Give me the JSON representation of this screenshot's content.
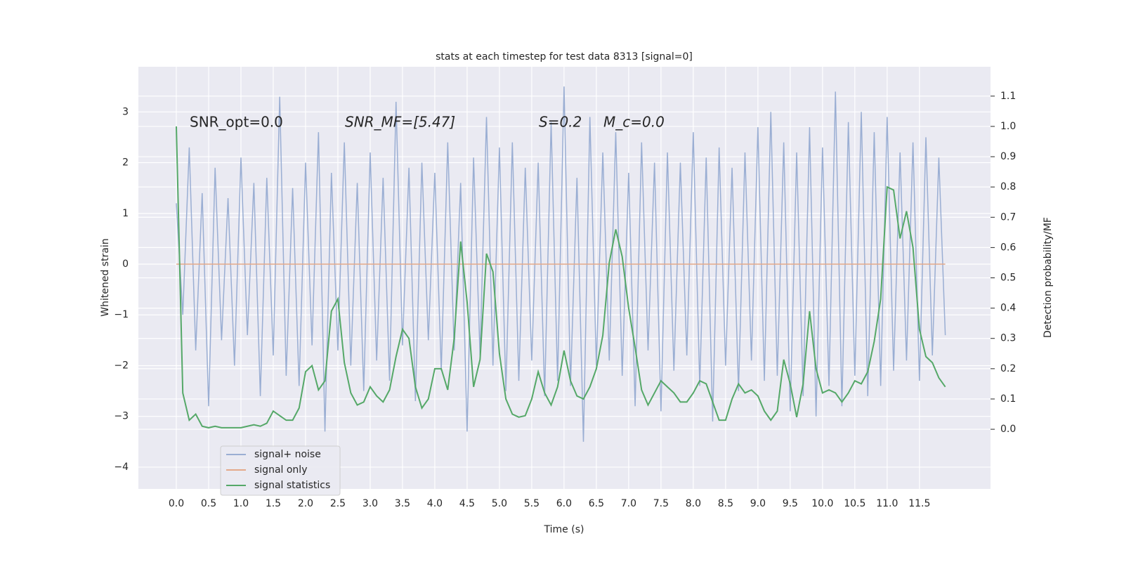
{
  "chart_data": {
    "type": "line",
    "title": "stats at each timestep for test data 8313 [signal=0]",
    "xlabel": "Time (s)",
    "ylabel": "Whitened strain",
    "y2label": "Detection probability/MF",
    "annotations": [
      "SNR_opt=0.0",
      "SNR_MF=[5.47]",
      "S=0.2",
      "M_c=0.0"
    ],
    "grid": true,
    "legend": "lower left",
    "xlim": [
      -0.587,
      12.6
    ],
    "ylim": [
      -4.43,
      3.89
    ],
    "y2lim": [
      -0.197,
      1.197
    ],
    "xticks": [
      {
        "value": 0,
        "label": "0.0"
      },
      0.5,
      {
        "value": 1,
        "label": "1.0"
      },
      1.5,
      {
        "value": 2,
        "label": "2.0"
      },
      2.5,
      {
        "value": 3,
        "label": "3.0"
      },
      3.5,
      {
        "value": 4,
        "label": "4.0"
      },
      4.5,
      {
        "value": 5,
        "label": "5.0"
      },
      5.5,
      {
        "value": 6,
        "label": "6.0"
      },
      6.5,
      {
        "value": 7,
        "label": "7.0"
      },
      7.5,
      {
        "value": 8,
        "label": "8.0"
      },
      8.5,
      {
        "value": 9,
        "label": "9.0"
      },
      9.5,
      {
        "value": 10,
        "label": "10.0"
      },
      10.5,
      {
        "value": 11,
        "label": "11.0"
      },
      11.5
    ],
    "yticks": [
      {
        "value": -4,
        "label": "−4"
      },
      {
        "value": -3,
        "label": "−3"
      },
      {
        "value": -2,
        "label": "−2"
      },
      {
        "value": -1,
        "label": "−1"
      },
      0,
      1,
      2,
      3
    ],
    "y2ticks": [
      {
        "value": 0,
        "label": "0.0"
      },
      0.1,
      0.2,
      0.3,
      0.4,
      0.5,
      0.6,
      0.7,
      0.8,
      0.9,
      {
        "value": 1,
        "label": "1.0"
      },
      1.1
    ],
    "x": [
      0.0,
      0.1,
      0.2,
      0.3,
      0.4,
      0.5,
      0.6,
      0.7,
      0.8,
      0.9,
      1.0,
      1.1,
      1.2,
      1.3,
      1.4,
      1.5,
      1.6,
      1.7,
      1.8,
      1.9,
      2.0,
      2.1,
      2.2,
      2.3,
      2.4,
      2.5,
      2.6,
      2.7,
      2.8,
      2.9,
      3.0,
      3.1,
      3.2,
      3.3,
      3.4,
      3.5,
      3.6,
      3.7,
      3.8,
      3.9,
      4.0,
      4.1,
      4.2,
      4.3,
      4.4,
      4.5,
      4.6,
      4.7,
      4.8,
      4.9,
      5.0,
      5.1,
      5.2,
      5.3,
      5.4,
      5.5,
      5.6,
      5.7,
      5.8,
      5.9,
      6.0,
      6.1,
      6.2,
      6.3,
      6.4,
      6.5,
      6.6,
      6.7,
      6.8,
      6.9,
      7.0,
      7.1,
      7.2,
      7.3,
      7.4,
      7.5,
      7.6,
      7.7,
      7.8,
      7.9,
      8.0,
      8.1,
      8.2,
      8.3,
      8.4,
      8.5,
      8.6,
      8.7,
      8.8,
      8.9,
      9.0,
      9.1,
      9.2,
      9.3,
      9.4,
      9.5,
      9.6,
      9.7,
      9.8,
      9.9,
      10.0,
      10.1,
      10.2,
      10.3,
      10.4,
      10.5,
      10.6,
      10.7,
      10.8,
      10.9,
      11.0,
      11.1,
      11.2,
      11.3,
      11.4,
      11.5,
      11.6,
      11.7,
      11.8,
      11.9
    ],
    "series": [
      {
        "name": "signal+ noise",
        "color": "#9aaed3",
        "values": [
          1.2,
          -1.0,
          2.3,
          -1.7,
          1.4,
          -2.8,
          1.9,
          -1.5,
          1.3,
          -2.0,
          2.1,
          -1.4,
          1.6,
          -2.6,
          1.7,
          -1.8,
          3.3,
          -2.2,
          1.5,
          -2.4,
          2.0,
          -1.6,
          2.6,
          -3.3,
          1.8,
          -1.7,
          2.4,
          -2.0,
          1.6,
          -2.5,
          2.2,
          -1.9,
          1.7,
          -2.3,
          3.2,
          -1.6,
          1.9,
          -2.7,
          2.0,
          -1.5,
          1.8,
          -2.1,
          2.4,
          -1.7,
          1.6,
          -3.3,
          2.1,
          -1.8,
          2.9,
          -2.0,
          2.3,
          -2.5,
          2.4,
          -2.3,
          1.9,
          -1.9,
          2.0,
          -2.6,
          2.8,
          -2.3,
          3.5,
          -2.4,
          1.7,
          -3.5,
          2.9,
          -2.0,
          2.2,
          -1.9,
          2.6,
          -2.2,
          1.8,
          -2.8,
          2.4,
          -1.7,
          2.0,
          -2.9,
          2.2,
          -2.1,
          2.0,
          -1.8,
          2.6,
          -2.4,
          2.1,
          -3.1,
          2.3,
          -2.0,
          1.9,
          -2.5,
          2.2,
          -1.9,
          2.7,
          -2.3,
          3.0,
          -2.2,
          2.4,
          -2.9,
          2.2,
          -2.6,
          2.7,
          -3.0,
          2.3,
          -2.4,
          3.4,
          -2.8,
          2.8,
          -2.2,
          3.0,
          -2.6,
          2.6,
          -2.4,
          2.9,
          -2.1,
          2.2,
          -1.9,
          2.4,
          -2.3,
          2.5,
          -1.8,
          2.1,
          -1.4
        ]
      },
      {
        "name": "signal only",
        "color": "#e4a98a",
        "values": [
          0,
          0,
          0,
          0,
          0,
          0,
          0,
          0,
          0,
          0,
          0,
          0,
          0,
          0,
          0,
          0,
          0,
          0,
          0,
          0,
          0,
          0,
          0,
          0,
          0,
          0,
          0,
          0,
          0,
          0,
          0,
          0,
          0,
          0,
          0,
          0,
          0,
          0,
          0,
          0,
          0,
          0,
          0,
          0,
          0,
          0,
          0,
          0,
          0,
          0,
          0,
          0,
          0,
          0,
          0,
          0,
          0,
          0,
          0,
          0,
          0,
          0,
          0,
          0,
          0,
          0,
          0,
          0,
          0,
          0,
          0,
          0,
          0,
          0,
          0,
          0,
          0,
          0,
          0,
          0,
          0,
          0,
          0,
          0,
          0,
          0,
          0,
          0,
          0,
          0,
          0,
          0,
          0,
          0,
          0,
          0,
          0,
          0,
          0,
          0,
          0,
          0,
          0,
          0,
          0,
          0,
          0,
          0,
          0,
          0,
          0,
          0,
          0,
          0,
          0,
          0,
          0,
          0,
          0,
          0
        ]
      },
      {
        "name": "signal statistics",
        "color": "#55a868",
        "axis": "y2",
        "values": [
          1.0,
          0.12,
          0.03,
          0.05,
          0.01,
          0.005,
          0.01,
          0.005,
          0.005,
          0.005,
          0.005,
          0.01,
          0.015,
          0.01,
          0.02,
          0.06,
          0.045,
          0.03,
          0.03,
          0.07,
          0.19,
          0.21,
          0.13,
          0.16,
          0.39,
          0.43,
          0.22,
          0.12,
          0.08,
          0.09,
          0.14,
          0.11,
          0.09,
          0.13,
          0.24,
          0.33,
          0.3,
          0.14,
          0.07,
          0.1,
          0.2,
          0.2,
          0.13,
          0.3,
          0.62,
          0.42,
          0.14,
          0.23,
          0.58,
          0.52,
          0.25,
          0.1,
          0.05,
          0.04,
          0.045,
          0.1,
          0.19,
          0.12,
          0.08,
          0.14,
          0.26,
          0.16,
          0.11,
          0.1,
          0.14,
          0.2,
          0.31,
          0.55,
          0.66,
          0.57,
          0.4,
          0.27,
          0.13,
          0.08,
          0.12,
          0.16,
          0.14,
          0.12,
          0.09,
          0.09,
          0.12,
          0.16,
          0.15,
          0.09,
          0.03,
          0.03,
          0.1,
          0.15,
          0.12,
          0.13,
          0.11,
          0.06,
          0.03,
          0.06,
          0.23,
          0.15,
          0.04,
          0.15,
          0.39,
          0.2,
          0.12,
          0.13,
          0.12,
          0.09,
          0.12,
          0.16,
          0.15,
          0.19,
          0.29,
          0.43,
          0.8,
          0.79,
          0.63,
          0.72,
          0.6,
          0.33,
          0.24,
          0.22,
          0.17,
          0.14
        ]
      }
    ]
  }
}
